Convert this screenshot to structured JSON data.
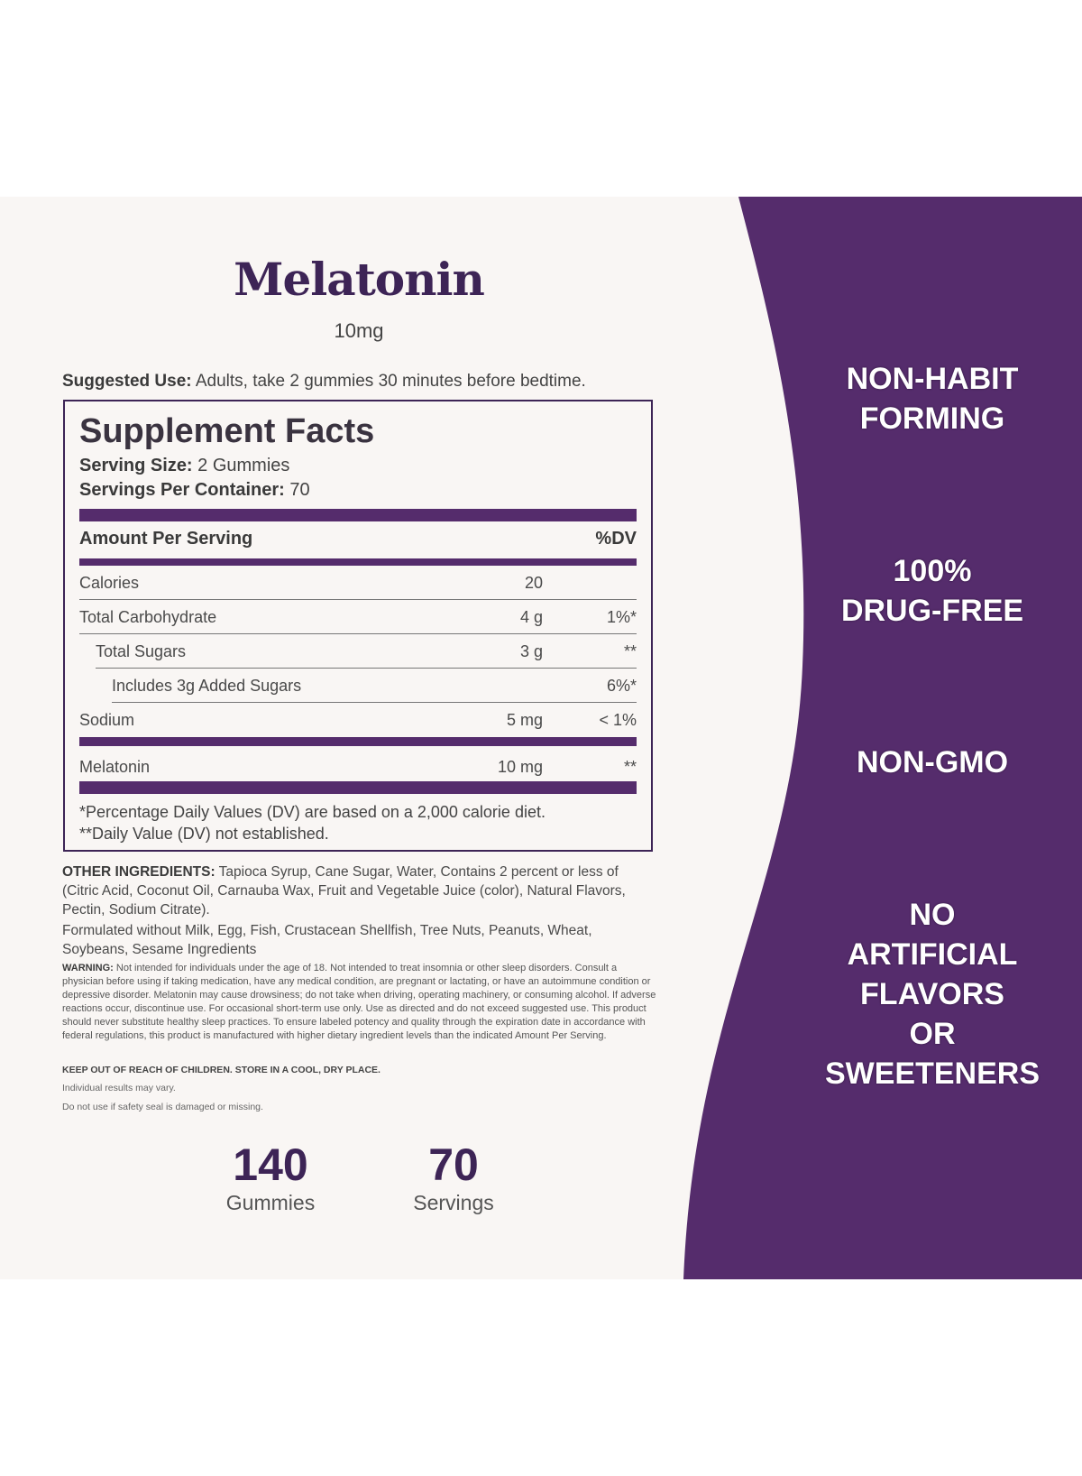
{
  "product": {
    "name": "Melatonin",
    "dose": "10mg"
  },
  "suggested_use": {
    "label": "Suggested Use:",
    "text": " Adults, take 2 gummies 30 minutes before bedtime."
  },
  "supplement_facts": {
    "title": "Supplement Facts",
    "serving_size_label": "Serving Size:",
    "serving_size": " 2 Gummies",
    "servings_label": "Servings Per Container:",
    "servings": " 70",
    "header_amount": "Amount Per Serving",
    "header_dv": "%DV",
    "rows": [
      {
        "name": "Calories",
        "amount": "20",
        "dv": ""
      },
      {
        "name": "Total Carbohydrate",
        "amount": "4 g",
        "dv": "1%*"
      },
      {
        "name": "Total Sugars",
        "amount": "3 g",
        "dv": "**"
      },
      {
        "name": "Includes 3g Added Sugars",
        "amount": "",
        "dv": "6%*"
      },
      {
        "name": "Sodium",
        "amount": "5 mg",
        "dv": "< 1%"
      }
    ],
    "active": {
      "name": "Melatonin",
      "amount": "10 mg",
      "dv": "**"
    },
    "footnote1": "*Percentage Daily Values (DV) are based on a 2,000 calorie diet.",
    "footnote2": "**Daily Value (DV) not established."
  },
  "other_ingredients": {
    "label": "OTHER INGREDIENTS:",
    "text": " Tapioca Syrup, Cane Sugar, Water, Contains 2 percent or less of (Citric Acid, Coconut Oil, Carnauba Wax, Fruit and Vegetable Juice (color), Natural Flavors, Pectin, Sodium Citrate)."
  },
  "allergens": "Formulated without Milk, Egg, Fish, Crustacean Shellfish, Tree Nuts, Peanuts, Wheat, Soybeans, Sesame Ingredients",
  "warning": {
    "label": "WARNING:",
    "text": " Not intended for individuals under the age of 18. Not intended to treat insomnia or other sleep disorders. Consult a physician before using if taking medication, have any medical condition, are pregnant or lactating, or have an autoimmune condition or depressive disorder. Melatonin may cause drowsiness; do not take when driving, operating machinery, or consuming alcohol. If adverse reactions occur, discontinue use. For occasional short-term use only. Use as directed and do not exceed suggested use. This product should never substitute healthy sleep practices. To ensure labeled potency and quality through the expiration date in accordance with federal regulations, this product is manufactured with higher dietary ingredient levels than the indicated Amount Per Serving."
  },
  "keep_out": "KEEP OUT OF REACH OF CHILDREN. STORE IN A COOL, DRY PLACE.",
  "individual_results": "Individual results may vary.",
  "seal_notice": "Do not use if safety seal is damaged or missing.",
  "stats": [
    {
      "number": "140",
      "label": "Gummies"
    },
    {
      "number": "70",
      "label": "Servings"
    }
  ],
  "claims": [
    {
      "lines": [
        "NON-HABIT",
        "FORMING"
      ]
    },
    {
      "lines": [
        "100%",
        "DRUG-FREE"
      ]
    },
    {
      "lines": [
        "NON-GMO"
      ]
    },
    {
      "lines": [
        "NO",
        "ARTIFICIAL",
        "FLAVORS",
        "OR",
        "SWEETENERS"
      ]
    }
  ],
  "colors": {
    "brand_purple": "#552c6c",
    "title_purple": "#3d2456",
    "background": "#f9f6f4"
  }
}
